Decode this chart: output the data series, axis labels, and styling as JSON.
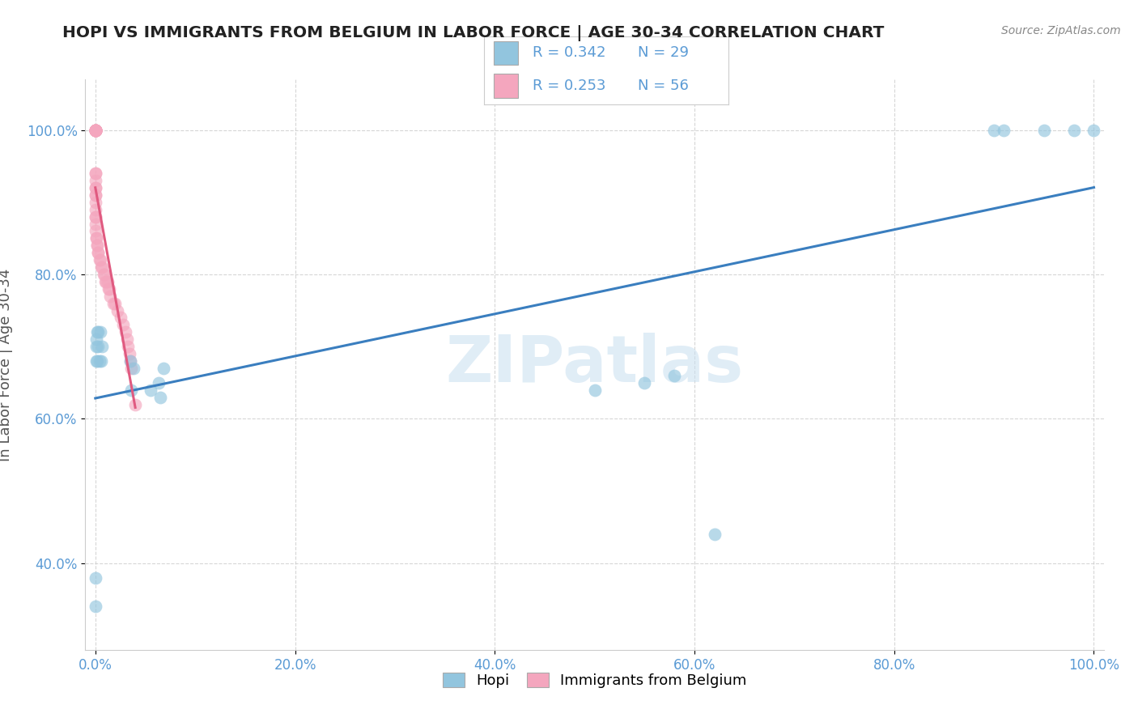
{
  "title": "HOPI VS IMMIGRANTS FROM BELGIUM IN LABOR FORCE | AGE 30-34 CORRELATION CHART",
  "source": "Source: ZipAtlas.com",
  "ylabel": "In Labor Force | Age 30-34",
  "watermark": "ZIPatlas",
  "hopi_color": "#92c5de",
  "belgium_color": "#f4a6be",
  "hopi_line_color": "#3a7ebf",
  "belgium_line_color": "#e05a80",
  "legend1_r": "R = 0.342",
  "legend1_n": "N = 29",
  "legend2_r": "R = 0.253",
  "legend2_n": "N = 56",
  "hopi_x": [
    0.0,
    0.0,
    0.001,
    0.001,
    0.001,
    0.002,
    0.002,
    0.003,
    0.003,
    0.004,
    0.005,
    0.006,
    0.007,
    0.035,
    0.036,
    0.038,
    0.055,
    0.063,
    0.065,
    0.068,
    0.5,
    0.55,
    0.58,
    0.62,
    0.9,
    0.91,
    0.95,
    0.98,
    1.0
  ],
  "hopi_y": [
    0.34,
    0.38,
    0.68,
    0.7,
    0.71,
    0.68,
    0.72,
    0.7,
    0.72,
    0.68,
    0.72,
    0.68,
    0.7,
    0.68,
    0.64,
    0.67,
    0.64,
    0.65,
    0.63,
    0.67,
    0.64,
    0.65,
    0.66,
    0.44,
    1.0,
    1.0,
    1.0,
    1.0,
    1.0
  ],
  "belgium_x": [
    0.0,
    0.0,
    0.0,
    0.0,
    0.0,
    0.0,
    0.0,
    0.0,
    0.0,
    0.0,
    0.0,
    0.0,
    0.0,
    0.0,
    0.0,
    0.0,
    0.0,
    0.0,
    0.0,
    0.0,
    0.0,
    0.0,
    0.0,
    0.0,
    0.0,
    0.0,
    0.001,
    0.001,
    0.002,
    0.002,
    0.003,
    0.003,
    0.004,
    0.005,
    0.006,
    0.007,
    0.008,
    0.009,
    0.01,
    0.011,
    0.012,
    0.013,
    0.014,
    0.015,
    0.018,
    0.02,
    0.022,
    0.025,
    0.028,
    0.03,
    0.032,
    0.033,
    0.034,
    0.035,
    0.036,
    0.04
  ],
  "belgium_y": [
    1.0,
    1.0,
    1.0,
    1.0,
    1.0,
    1.0,
    1.0,
    1.0,
    1.0,
    1.0,
    1.0,
    1.0,
    1.0,
    0.94,
    0.94,
    0.93,
    0.92,
    0.92,
    0.91,
    0.91,
    0.9,
    0.89,
    0.88,
    0.88,
    0.87,
    0.86,
    0.85,
    0.85,
    0.84,
    0.84,
    0.83,
    0.83,
    0.82,
    0.82,
    0.81,
    0.81,
    0.8,
    0.8,
    0.79,
    0.79,
    0.79,
    0.78,
    0.78,
    0.77,
    0.76,
    0.76,
    0.75,
    0.74,
    0.73,
    0.72,
    0.71,
    0.7,
    0.69,
    0.68,
    0.67,
    0.62
  ],
  "xlim": [
    -0.01,
    1.01
  ],
  "ylim": [
    0.28,
    1.07
  ],
  "xtick_vals": [
    0.0,
    0.2,
    0.4,
    0.6,
    0.8,
    1.0
  ],
  "ytick_vals": [
    0.4,
    0.6,
    0.8,
    1.0
  ]
}
